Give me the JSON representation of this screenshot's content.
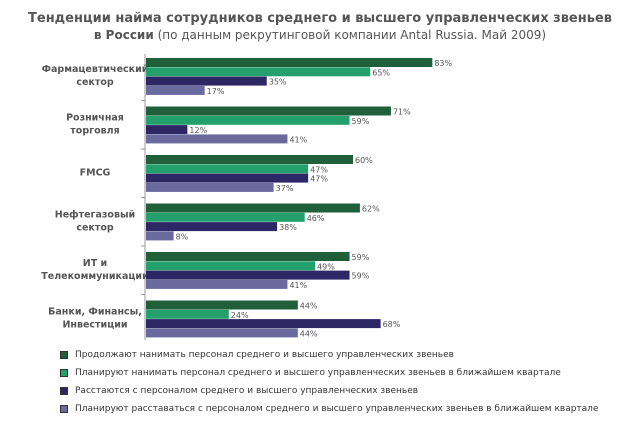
{
  "title_line1": "Тенденции найма сотрудников среднего и высшего управленческих звеньев",
  "title_line2_bold": "в России",
  "title_line2_rest": " (по данным рекрутинговой компании Antal Russia. Май 2009)",
  "chart_data": {
    "type": "bar",
    "orientation": "horizontal",
    "categories": [
      [
        "Фармацевтический",
        "сектор"
      ],
      [
        "Розничная",
        "торговля"
      ],
      [
        "FMCG"
      ],
      [
        "Нефтегазовый",
        "сектор"
      ],
      [
        "ИТ и",
        "Телекоммуникации"
      ],
      [
        "Банки, Финансы,",
        "Инвестиции"
      ]
    ],
    "series": [
      {
        "name": "Продолжают нанимать персонал среднего и высшего управленческих звеньев",
        "color": "#1f5f3a",
        "values": [
          83,
          71,
          60,
          62,
          59,
          44
        ]
      },
      {
        "name": "Планируют нанимать персонал среднего и высшего управленческих звеньев в ближайшем квартале",
        "color": "#23a06b",
        "values": [
          65,
          59,
          47,
          46,
          49,
          24
        ]
      },
      {
        "name": "Расстаются с персоналом среднего и высшего управленческих звеньев",
        "color": "#2e2766",
        "values": [
          35,
          12,
          47,
          38,
          59,
          68
        ]
      },
      {
        "name": "Планируют расставаться с персоналом среднего и высшего управленческих звеньев в ближайшем квартале",
        "color": "#6a6a9e",
        "values": [
          17,
          41,
          37,
          8,
          41,
          44
        ]
      }
    ],
    "value_suffix": "%",
    "xlim": [
      0,
      100
    ],
    "legend_position": "bottom",
    "grid": false
  }
}
